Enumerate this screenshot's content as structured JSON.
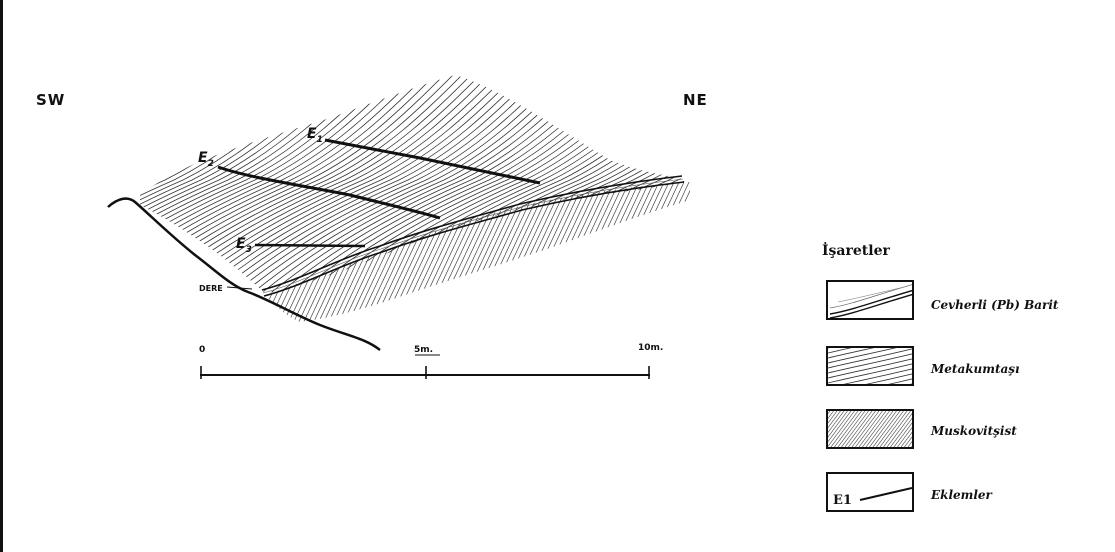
{
  "orientation": {
    "left": "SW",
    "right": "NE"
  },
  "features": {
    "stream_label": "DERE",
    "joint_labels": [
      {
        "letter": "E",
        "index": "1"
      },
      {
        "letter": "E",
        "index": "2"
      },
      {
        "letter": "E",
        "index": "3"
      }
    ]
  },
  "scale_bar": {
    "start": "0",
    "middle": "5m.",
    "end": "10m."
  },
  "legend": {
    "title": "İşaretler",
    "items": [
      {
        "label": "Cevherli (Pb) Barit"
      },
      {
        "label": "Metakumtaşı"
      },
      {
        "label": "Muskovitşist"
      },
      {
        "label": "Eklemler",
        "box_text": "E1"
      }
    ]
  },
  "colors": {
    "ink": "#111111",
    "paper": "#ffffff"
  }
}
